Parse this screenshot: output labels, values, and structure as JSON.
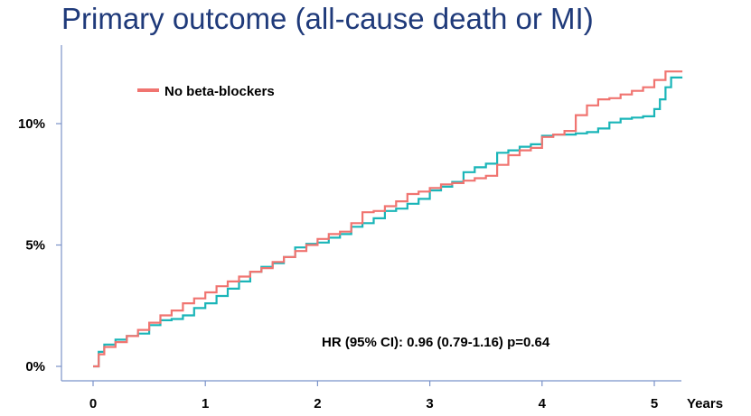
{
  "title": "Primary outcome (all-cause death or MI)",
  "colors": {
    "no_beta_blockers": "#f07470",
    "beta_blockers": "#1ab5b8",
    "axis": "#7b93c9",
    "title": "#1f3a7a"
  },
  "chart_data": {
    "type": "line",
    "title": "Primary outcome (all-cause death or MI)",
    "xlabel": "Years",
    "ylabel": "",
    "xlim": [
      0,
      5.25
    ],
    "ylim": [
      0,
      12.5
    ],
    "x_ticks": [
      {
        "value": 0,
        "label": "0"
      },
      {
        "value": 1,
        "label": "1"
      },
      {
        "value": 2,
        "label": "2"
      },
      {
        "value": 3,
        "label": "3"
      },
      {
        "value": 4,
        "label": "4"
      },
      {
        "value": 5,
        "label": "5"
      }
    ],
    "y_ticks": [
      {
        "value": 0,
        "label": "0%"
      },
      {
        "value": 5,
        "label": "5%"
      },
      {
        "value": 10,
        "label": "10%"
      }
    ],
    "grid": false,
    "legend": {
      "placement": "top-left",
      "entries": [
        "No beta-blockers"
      ]
    },
    "annotation": "HR (95% CI): 0.96 (0.79-1.16) p=0.64",
    "series": [
      {
        "name": "No beta-blockers",
        "color": "#f07470",
        "step": true,
        "x": [
          0,
          0.05,
          0.1,
          0.2,
          0.3,
          0.4,
          0.5,
          0.6,
          0.7,
          0.8,
          0.9,
          1.0,
          1.1,
          1.2,
          1.3,
          1.4,
          1.5,
          1.6,
          1.7,
          1.8,
          1.9,
          2.0,
          2.1,
          2.2,
          2.3,
          2.4,
          2.5,
          2.6,
          2.7,
          2.8,
          2.9,
          3.0,
          3.1,
          3.2,
          3.3,
          3.4,
          3.5,
          3.6,
          3.7,
          3.8,
          3.9,
          4.0,
          4.1,
          4.2,
          4.3,
          4.4,
          4.5,
          4.6,
          4.7,
          4.8,
          4.9,
          5.0,
          5.1,
          5.25
        ],
        "y": [
          0,
          0.5,
          0.8,
          1.0,
          1.25,
          1.5,
          1.8,
          2.1,
          2.3,
          2.6,
          2.8,
          3.05,
          3.3,
          3.5,
          3.7,
          3.9,
          4.05,
          4.3,
          4.5,
          4.75,
          5.0,
          5.25,
          5.45,
          5.55,
          5.9,
          6.35,
          6.4,
          6.6,
          6.8,
          7.1,
          7.2,
          7.35,
          7.5,
          7.55,
          7.65,
          7.75,
          7.85,
          8.3,
          8.7,
          8.9,
          9.0,
          9.45,
          9.55,
          9.7,
          10.35,
          10.75,
          11.0,
          11.05,
          11.2,
          11.35,
          11.5,
          11.8,
          12.15,
          12.15
        ]
      },
      {
        "name": "",
        "color": "#1ab5b8",
        "step": true,
        "x": [
          0,
          0.05,
          0.1,
          0.2,
          0.3,
          0.4,
          0.5,
          0.6,
          0.7,
          0.8,
          0.9,
          1.0,
          1.1,
          1.2,
          1.3,
          1.4,
          1.5,
          1.6,
          1.7,
          1.8,
          1.9,
          2.0,
          2.1,
          2.2,
          2.3,
          2.4,
          2.5,
          2.6,
          2.7,
          2.8,
          2.9,
          3.0,
          3.1,
          3.2,
          3.3,
          3.4,
          3.5,
          3.6,
          3.7,
          3.8,
          3.9,
          4.0,
          4.1,
          4.2,
          4.3,
          4.4,
          4.5,
          4.6,
          4.7,
          4.8,
          4.9,
          5.0,
          5.05,
          5.1,
          5.15,
          5.25
        ],
        "y": [
          0,
          0.6,
          0.9,
          1.1,
          1.25,
          1.35,
          1.7,
          1.9,
          1.95,
          2.1,
          2.4,
          2.6,
          2.9,
          3.2,
          3.5,
          3.9,
          4.1,
          4.25,
          4.5,
          4.9,
          5.05,
          5.1,
          5.3,
          5.45,
          5.75,
          5.9,
          6.1,
          6.4,
          6.5,
          6.7,
          6.9,
          7.25,
          7.4,
          7.6,
          8.0,
          8.2,
          8.35,
          8.8,
          8.9,
          9.05,
          9.15,
          9.5,
          9.55,
          9.55,
          9.6,
          9.65,
          9.8,
          10.05,
          10.2,
          10.25,
          10.3,
          10.6,
          11.0,
          11.5,
          11.9,
          11.9
        ]
      }
    ]
  }
}
